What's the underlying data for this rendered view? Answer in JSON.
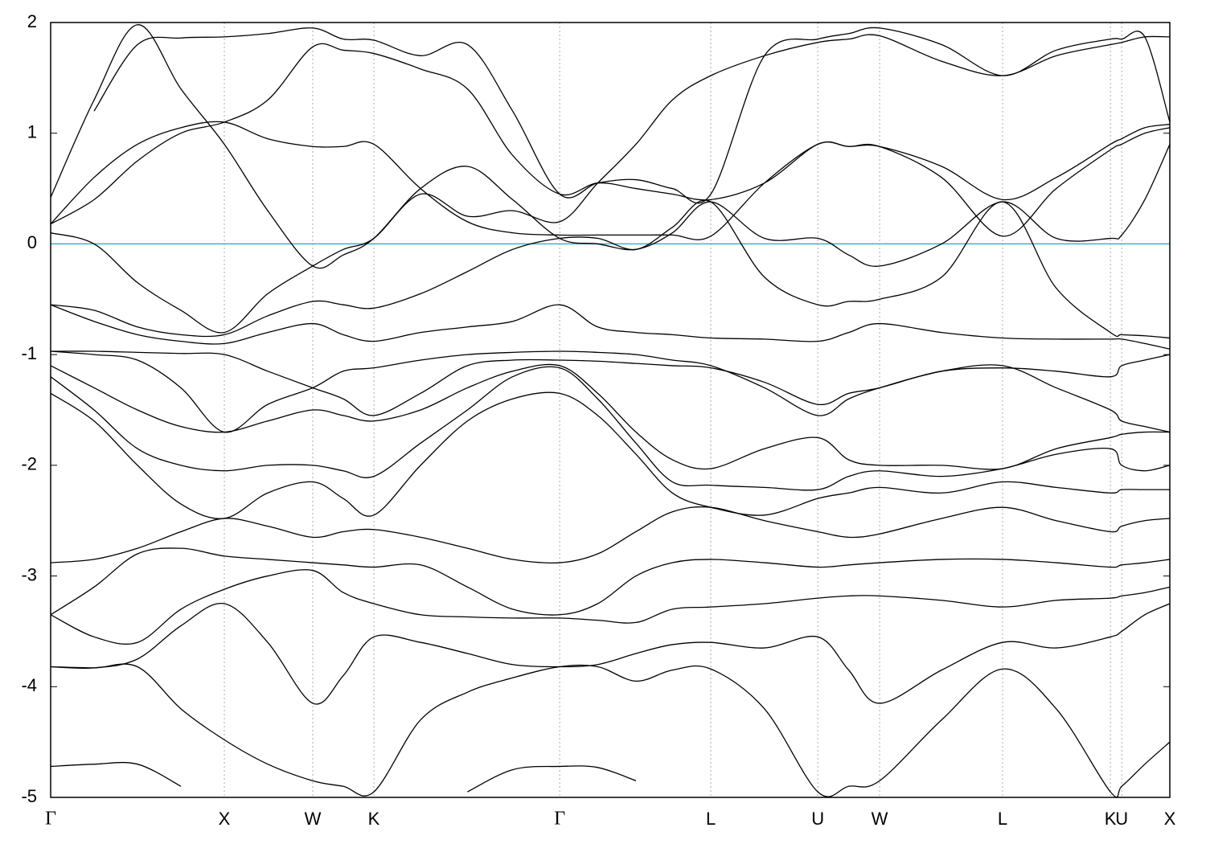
{
  "chart_data": {
    "type": "line",
    "color": "#000000",
    "hline": {
      "y": 0,
      "color": "#4bacc6"
    },
    "vgrid": true,
    "xlim": [
      0,
      6.444
    ],
    "ylim": [
      -5,
      2
    ],
    "yticks": [
      -5,
      -4,
      -3,
      -2,
      -1,
      0,
      1,
      2
    ],
    "xticks": [
      {
        "value": 0,
        "label": "Γ"
      },
      {
        "value": 1.0,
        "label": "X"
      },
      {
        "value": 1.509,
        "label": "W"
      },
      {
        "value": 1.861,
        "label": "K"
      },
      {
        "value": 2.931,
        "label": "Γ"
      },
      {
        "value": 3.801,
        "label": "L"
      },
      {
        "value": 4.417,
        "label": "U"
      },
      {
        "value": 4.773,
        "label": "W"
      },
      {
        "value": 5.481,
        "label": "L"
      },
      {
        "value": 6.102,
        "label": "K"
      },
      {
        "value": 6.167,
        "label": "U"
      },
      {
        "value": 6.444,
        "label": "X"
      }
    ],
    "x": [
      0,
      0.25,
      0.5,
      0.75,
      1.0,
      1.25,
      1.509,
      1.685,
      1.861,
      2.13,
      2.4,
      2.66,
      2.931,
      3.15,
      3.37,
      3.58,
      3.801,
      4.11,
      4.417,
      4.595,
      4.773,
      5.13,
      5.481,
      5.79,
      6.102,
      6.167,
      6.3,
      6.444
    ],
    "series": [
      {
        "values": [
          -4.72,
          -4.7,
          -4.7,
          -4.9,
          null,
          null,
          null,
          null,
          null,
          null,
          -4.95,
          -4.75,
          -4.72,
          -4.73,
          -4.85,
          null,
          null,
          null,
          null,
          null,
          null,
          null,
          null,
          null,
          null,
          null,
          null,
          null
        ]
      },
      {
        "values": [
          -3.82,
          -3.83,
          -3.82,
          -4.2,
          -4.48,
          -4.7,
          -4.85,
          -4.9,
          -4.95,
          -4.3,
          -4.05,
          -3.92,
          -3.82,
          -3.82,
          -3.95,
          -3.85,
          -3.84,
          -4.2,
          -4.95,
          -4.9,
          -4.85,
          -4.3,
          -3.84,
          -4.2,
          -4.95,
          -4.9,
          -4.7,
          -4.5
        ]
      },
      {
        "values": [
          -3.82,
          -3.83,
          -3.75,
          -3.45,
          -3.25,
          -3.6,
          -4.15,
          -3.9,
          -3.55,
          -3.6,
          -3.7,
          -3.8,
          -3.82,
          -3.8,
          -3.7,
          -3.62,
          -3.6,
          -3.65,
          -3.55,
          -3.85,
          -4.15,
          -3.85,
          -3.6,
          -3.65,
          -3.55,
          -3.5,
          -3.35,
          -3.25
        ]
      },
      {
        "values": [
          -3.35,
          -3.55,
          -3.6,
          -3.3,
          -3.12,
          -3.0,
          -2.95,
          -3.15,
          -3.25,
          -3.35,
          -3.37,
          -3.38,
          -3.38,
          -3.4,
          -3.42,
          -3.3,
          -3.28,
          -3.25,
          -3.2,
          -3.18,
          -3.18,
          -3.22,
          -3.28,
          -3.22,
          -3.2,
          -3.18,
          -3.15,
          -3.1
        ]
      },
      {
        "values": [
          -3.35,
          -3.1,
          -2.8,
          -2.75,
          -2.82,
          -2.85,
          -2.88,
          -2.9,
          -2.92,
          -2.9,
          -3.1,
          -3.3,
          -3.35,
          -3.25,
          -3.0,
          -2.88,
          -2.85,
          -2.88,
          -2.92,
          -2.9,
          -2.88,
          -2.85,
          -2.85,
          -2.88,
          -2.92,
          -2.9,
          -2.88,
          -2.85
        ]
      },
      {
        "values": [
          -2.88,
          -2.85,
          -2.75,
          -2.6,
          -2.48,
          -2.55,
          -2.65,
          -2.6,
          -2.58,
          -2.65,
          -2.75,
          -2.85,
          -2.88,
          -2.8,
          -2.6,
          -2.42,
          -2.38,
          -2.5,
          -2.6,
          -2.65,
          -2.62,
          -2.48,
          -2.38,
          -2.5,
          -2.6,
          -2.55,
          -2.5,
          -2.48
        ]
      },
      {
        "values": [
          -1.35,
          -1.6,
          -2.0,
          -2.35,
          -2.48,
          -2.25,
          -2.15,
          -2.3,
          -2.45,
          -2.0,
          -1.6,
          -1.4,
          -1.35,
          -1.55,
          -1.9,
          -2.25,
          -2.38,
          -2.45,
          -2.3,
          -2.25,
          -2.2,
          -2.25,
          -2.15,
          -2.2,
          -2.25,
          -2.22,
          -2.22,
          -2.22
        ]
      },
      {
        "values": [
          -1.2,
          -1.5,
          -1.85,
          -2.0,
          -2.05,
          -2.0,
          -2.0,
          -2.05,
          -2.1,
          -1.8,
          -1.5,
          -1.2,
          -1.12,
          -1.4,
          -1.8,
          -2.15,
          -2.18,
          -2.2,
          -2.22,
          -2.1,
          -2.05,
          -2.1,
          -2.03,
          -1.9,
          -1.85,
          -2.0,
          -2.05,
          -2.0
        ]
      },
      {
        "values": [
          -1.1,
          -1.3,
          -1.5,
          -1.65,
          -1.7,
          -1.6,
          -1.5,
          -1.55,
          -1.6,
          -1.5,
          -1.3,
          -1.15,
          -1.1,
          -1.35,
          -1.7,
          -1.95,
          -2.03,
          -1.85,
          -1.75,
          -1.95,
          -2.0,
          -2.0,
          -2.03,
          -1.85,
          -1.75,
          -1.72,
          -1.7,
          -1.7
        ]
      },
      {
        "values": [
          -0.97,
          -1.0,
          -1.05,
          -1.3,
          -1.7,
          -1.45,
          -1.3,
          -1.15,
          -1.12,
          -1.05,
          -1.0,
          -0.98,
          -0.97,
          -0.98,
          -1.0,
          -1.05,
          -1.1,
          -1.3,
          -1.55,
          -1.4,
          -1.3,
          -1.15,
          -1.1,
          -1.3,
          -1.5,
          -1.6,
          -1.65,
          -1.7
        ]
      },
      {
        "values": [
          -0.97,
          -0.97,
          -0.98,
          -0.99,
          -1.0,
          -1.15,
          -1.3,
          -1.4,
          -1.55,
          -1.35,
          -1.1,
          -1.05,
          -1.05,
          -1.06,
          -1.08,
          -1.1,
          -1.12,
          -1.25,
          -1.45,
          -1.35,
          -1.3,
          -1.15,
          -1.12,
          -1.15,
          -1.2,
          -1.1,
          -1.05,
          -1.0
        ]
      },
      {
        "values": [
          -0.55,
          -0.7,
          -0.82,
          -0.88,
          -0.9,
          -0.8,
          -0.72,
          -0.82,
          -0.88,
          -0.8,
          -0.75,
          -0.7,
          -0.55,
          -0.75,
          -0.8,
          -0.82,
          -0.85,
          -0.86,
          -0.88,
          -0.8,
          -0.72,
          -0.8,
          -0.85,
          -0.86,
          -0.86,
          -0.86,
          -0.9,
          -0.95
        ]
      },
      {
        "values": [
          -0.55,
          -0.6,
          -0.75,
          -0.82,
          -0.82,
          -0.65,
          -0.52,
          -0.55,
          -0.58,
          -0.45,
          -0.25,
          -0.05,
          0.05,
          0.05,
          -0.05,
          0.15,
          0.38,
          -0.3,
          -0.55,
          -0.52,
          -0.5,
          -0.3,
          0.38,
          -0.4,
          -0.8,
          -0.82,
          -0.83,
          -0.85
        ]
      },
      {
        "values": [
          0.1,
          0.0,
          -0.35,
          -0.6,
          -0.8,
          -0.45,
          -0.2,
          -0.05,
          0.05,
          0.45,
          0.25,
          0.3,
          0.2,
          0.55,
          0.9,
          1.3,
          1.52,
          1.7,
          1.82,
          1.85,
          1.88,
          1.65,
          1.52,
          1.7,
          1.8,
          1.82,
          1.87,
          1.87
        ]
      },
      {
        "values": [
          0.18,
          0.4,
          0.75,
          1.0,
          1.1,
          1.3,
          1.78,
          1.75,
          1.72,
          1.58,
          1.4,
          0.8,
          0.45,
          0.55,
          0.5,
          0.45,
          0.4,
          0.55,
          0.9,
          0.88,
          0.88,
          0.7,
          0.4,
          0.6,
          0.9,
          0.95,
          1.05,
          1.08
        ]
      },
      {
        "values": [
          0.42,
          1.3,
          1.98,
          1.4,
          0.9,
          0.3,
          -0.2,
          -0.1,
          0.05,
          0.5,
          0.7,
          0.4,
          0.05,
          0.0,
          -0.05,
          0.1,
          0.38,
          0.05,
          0.05,
          -0.1,
          -0.2,
          0.0,
          0.38,
          0.05,
          0.05,
          0.08,
          0.4,
          0.9
        ]
      },
      {
        "values": [
          0.18,
          0.6,
          0.9,
          1.05,
          1.1,
          0.95,
          0.88,
          0.88,
          0.9,
          0.5,
          0.2,
          0.1,
          0.08,
          0.08,
          0.08,
          0.08,
          0.07,
          0.55,
          0.9,
          0.88,
          0.88,
          0.6,
          0.07,
          0.5,
          0.85,
          0.9,
          1.0,
          1.05
        ]
      },
      {
        "values": [
          null,
          1.2,
          1.8,
          1.86,
          1.87,
          1.9,
          1.95,
          1.85,
          1.84,
          1.7,
          1.8,
          1.2,
          0.45,
          0.55,
          0.58,
          0.5,
          0.45,
          1.7,
          1.85,
          1.9,
          1.95,
          1.8,
          1.52,
          1.75,
          1.85,
          1.85,
          1.87,
          1.1
        ]
      }
    ]
  }
}
